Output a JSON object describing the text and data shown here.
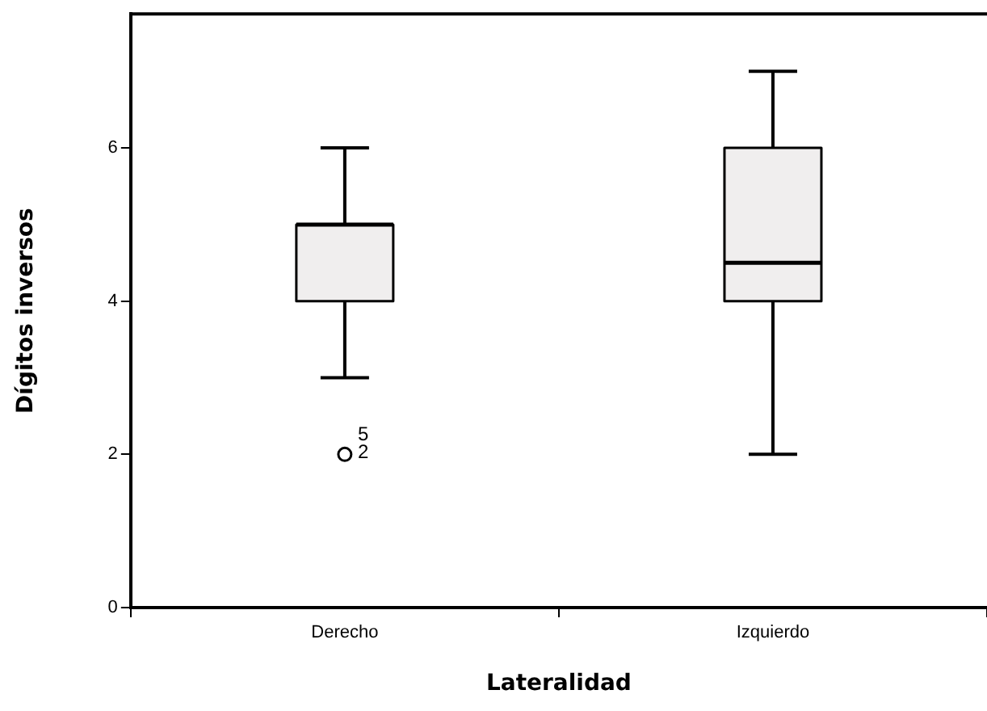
{
  "chart_data": {
    "type": "box",
    "xlabel": "Lateralidad",
    "ylabel": "Dígitos inversos",
    "categories": [
      "Derecho",
      "Izquierdo"
    ],
    "boxes": [
      {
        "low": 3,
        "q1": 4,
        "median": 5,
        "q3": 5,
        "high": 6,
        "outliers": [
          2
        ]
      },
      {
        "low": 2,
        "q1": 4,
        "median": 4.5,
        "q3": 6,
        "high": 7
      }
    ],
    "color": "#f0eeee",
    "ylim": [
      0,
      7.75
    ],
    "yticks": [
      0,
      2,
      4,
      6
    ],
    "grid": false,
    "legend": false,
    "annotations": [
      "5",
      "2"
    ]
  }
}
